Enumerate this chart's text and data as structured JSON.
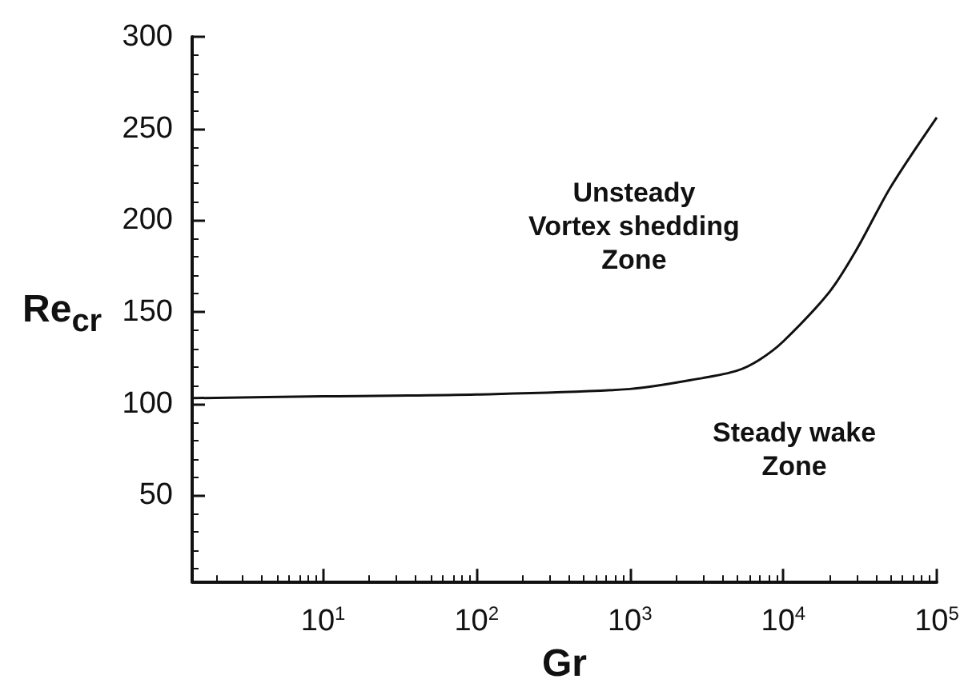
{
  "chart_data": {
    "type": "line",
    "xlabel": "Gr",
    "ylabel": "Re$_{cr}$",
    "log": "x",
    "xlim": [
      1.4,
      100000
    ],
    "ylim": [
      3,
      300
    ],
    "xticks": [
      {
        "value": 10,
        "label": "10$^{1}$"
      },
      {
        "value": 100,
        "label": "10$^{2}$"
      },
      {
        "value": 1000,
        "label": "10$^{3}$"
      },
      {
        "value": 10000,
        "label": "10$^{4}$"
      },
      {
        "value": 100000,
        "label": "10$^{5}$"
      }
    ],
    "yticks": [
      50,
      100,
      150,
      200,
      250,
      300
    ],
    "series": [
      {
        "color": "#111111",
        "x": [
          1.4,
          10,
          100,
          1000,
          3000,
          5000,
          7000,
          10000,
          20000,
          30000,
          50000,
          100000
        ],
        "values": [
          103,
          104,
          105,
          108,
          114,
          118,
          124,
          134,
          161,
          184,
          218,
          256
        ]
      }
    ],
    "annotations": [
      "Unsteady\nVortex shedding\nZone",
      "Steady wake\nZone"
    ],
    "grid": false,
    "marker": "none",
    "line_style": "solid"
  }
}
